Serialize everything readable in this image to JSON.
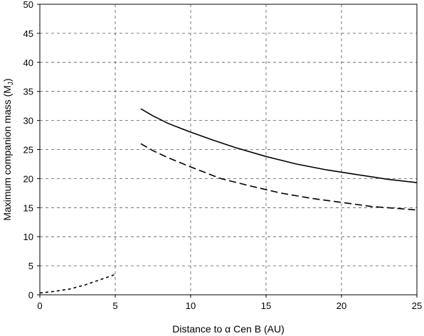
{
  "chart_data": {
    "type": "line",
    "title": "",
    "xlabel": "Distance to α Cen B (AU)",
    "ylabel": "Maximum companion mass (M",
    "ylabel_sub": "J",
    "ylabel_close": ")",
    "xlim": [
      0,
      25
    ],
    "ylim": [
      0,
      50
    ],
    "xticks": [
      0,
      5,
      10,
      15,
      20,
      25
    ],
    "yticks": [
      0,
      5,
      10,
      15,
      20,
      25,
      30,
      35,
      40,
      45,
      50
    ],
    "grid": true,
    "grid_style": "dashed",
    "legend": "none",
    "series": [
      {
        "style": "solid",
        "x": [
          6.7,
          7.5,
          8.5,
          10,
          11.5,
          13,
          15,
          17,
          19,
          21,
          23,
          25
        ],
        "y": [
          32,
          30.8,
          29.5,
          28,
          26.6,
          25.3,
          23.8,
          22.5,
          21.5,
          20.7,
          19.9,
          19.3
        ]
      },
      {
        "style": "dashed",
        "x": [
          6.7,
          7.5,
          8.5,
          10,
          12,
          14,
          16,
          18,
          20,
          22,
          24,
          25
        ],
        "y": [
          26,
          24.8,
          23.6,
          22,
          20,
          18.7,
          17.5,
          16.6,
          15.9,
          15.2,
          14.8,
          14.6
        ]
      },
      {
        "style": "dotted",
        "x": [
          0,
          1,
          2,
          3,
          4,
          5
        ],
        "y": [
          0.3,
          0.6,
          1.0,
          1.7,
          2.6,
          3.5
        ]
      }
    ]
  }
}
